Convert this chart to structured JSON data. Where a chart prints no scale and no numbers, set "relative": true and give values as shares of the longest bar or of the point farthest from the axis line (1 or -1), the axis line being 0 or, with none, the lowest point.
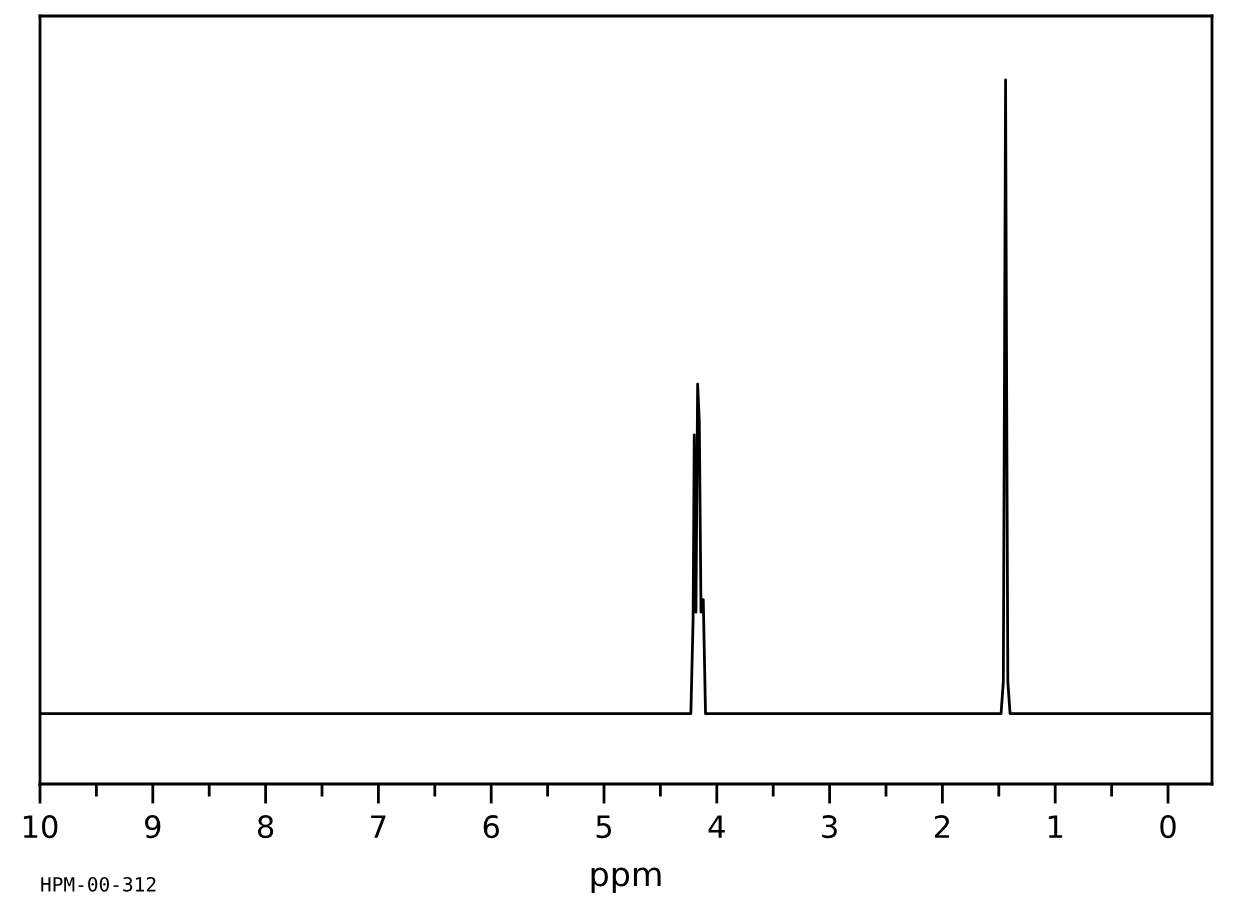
{
  "chart_data": {
    "type": "line",
    "xlabel": "ppm",
    "relative": true,
    "tick_labels": "x",
    "grid": false,
    "legend": false,
    "annotations": [
      "HPM-00-312"
    ],
    "xlim": [
      10,
      -0.39
    ],
    "xticks": [
      10,
      {
        "value": 9.5,
        "label": null
      },
      9,
      {
        "value": 8.5,
        "label": null
      },
      8,
      {
        "value": 7.5,
        "label": null
      },
      7,
      {
        "value": 6.5,
        "label": null
      },
      6,
      {
        "value": 5.5,
        "label": null
      },
      5,
      {
        "value": 4.5,
        "label": null
      },
      4,
      {
        "value": 3.5,
        "label": null
      },
      3,
      {
        "value": 2.5,
        "label": null
      },
      2,
      {
        "value": 1.5,
        "label": null
      },
      1,
      {
        "value": 0.5,
        "label": null
      },
      0
    ],
    "series": [
      {
        "color": "#000000",
        "x": [
          10,
          4.23,
          4.21,
          4.2,
          4.185,
          4.17,
          4.155,
          4.14,
          4.12,
          4.1,
          1.48,
          1.46,
          1.45,
          1.44,
          1.43,
          1.42,
          1.4,
          -0.39
        ],
        "values": [
          0.1,
          0.1,
          0.235,
          0.496,
          0.244,
          0.568,
          0.514,
          0.244,
          0.262,
          0.1,
          0.1,
          0.145,
          0.568,
          1,
          0.541,
          0.145,
          0.1,
          0.1
        ]
      }
    ]
  }
}
